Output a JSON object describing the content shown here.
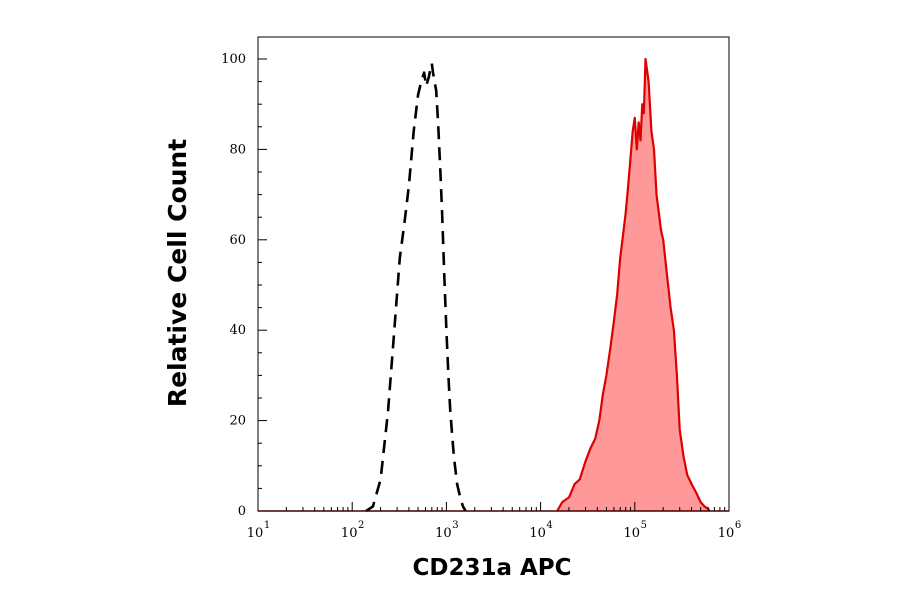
{
  "chart_data": {
    "type": "area",
    "title": "",
    "xlabel": "CD231a APC",
    "ylabel": "Relative Cell Count",
    "xscale": "log",
    "xlim": [
      10,
      1000000
    ],
    "ylim": [
      0,
      100
    ],
    "xticks": [
      {
        "base": "10",
        "exp": "1",
        "value": 10
      },
      {
        "base": "10",
        "exp": "2",
        "value": 100
      },
      {
        "base": "10",
        "exp": "3",
        "value": 1000
      },
      {
        "base": "10",
        "exp": "4",
        "value": 10000
      },
      {
        "base": "10",
        "exp": "5",
        "value": 100000
      },
      {
        "base": "10",
        "exp": "6",
        "value": 1000000
      }
    ],
    "yticks": [
      {
        "label": "0",
        "value": 0
      },
      {
        "label": "20",
        "value": 20
      },
      {
        "label": "40",
        "value": 40
      },
      {
        "label": "60",
        "value": 60
      },
      {
        "label": "80",
        "value": 80
      },
      {
        "label": "100",
        "value": 100
      }
    ],
    "grid": false,
    "series": [
      {
        "style": "dashed-line",
        "color": "#000000",
        "x": [
          140,
          166,
          200,
          240,
          280,
          320,
          360,
          400,
          450,
          500,
          540,
          580,
          610,
          650,
          680,
          700,
          720,
          750,
          780,
          820,
          860,
          900,
          950,
          1000,
          1050,
          1100,
          1200,
          1300,
          1400,
          1500,
          1550,
          1600
        ],
        "y": [
          0,
          1,
          7,
          22,
          40,
          56,
          64,
          72,
          84,
          92,
          95,
          97,
          94,
          96,
          98,
          99,
          97,
          95,
          93,
          85,
          76,
          66,
          52,
          40,
          30,
          22,
          12,
          6,
          3,
          1,
          0.5,
          0
        ]
      },
      {
        "style": "filled",
        "color": "#dd0000",
        "fill": "#ff9999",
        "x": [
          15000,
          17000,
          20000,
          23000,
          26000,
          30000,
          34000,
          38000,
          42000,
          46000,
          50000,
          55000,
          60000,
          65000,
          70000,
          75000,
          80000,
          85000,
          90000,
          95000,
          100000,
          105000,
          110000,
          115000,
          120000,
          125000,
          130000,
          140000,
          150000,
          160000,
          170000,
          180000,
          190000,
          200000,
          220000,
          240000,
          260000,
          280000,
          300000,
          330000,
          360000,
          400000,
          450000,
          500000,
          550000,
          600000,
          620000
        ],
        "y": [
          0,
          2,
          3,
          6,
          7,
          11,
          14,
          16,
          20,
          26,
          30,
          36,
          42,
          48,
          56,
          61,
          66,
          72,
          78,
          84,
          87,
          80,
          86,
          82,
          90,
          88,
          100,
          95,
          84,
          80,
          70,
          66,
          62,
          60,
          52,
          45,
          40,
          30,
          18,
          12,
          8,
          6,
          4,
          2,
          1,
          0.5,
          0
        ]
      }
    ]
  }
}
